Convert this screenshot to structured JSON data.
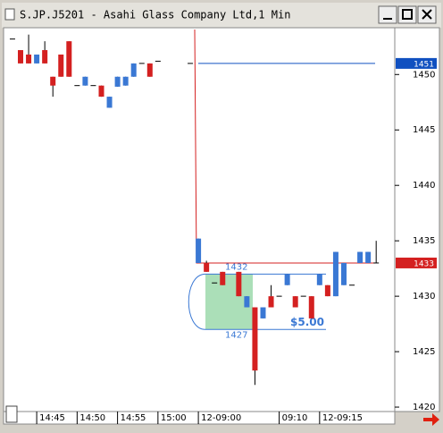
{
  "window_title": "S.JP.J5201 - Asahi Glass Company Ltd,1 Min",
  "chart_data": {
    "type": "candlestick",
    "open": [
      1453.2,
      1452.2,
      1451.8,
      1451,
      1452.2,
      1449.8,
      1451.8,
      1453,
      1449,
      1449,
      1449,
      1449,
      1447,
      1448.9,
      1449,
      1449.8,
      1451,
      1451,
      1451.2,
      null,
      null,
      null,
      1451,
      1433,
      1433,
      1431.2,
      1432.2,
      null,
      1432.2,
      1429,
      1429,
      1428,
      1430,
      1430,
      1431,
      1430,
      1430,
      1430,
      1431,
      1431,
      1430,
      1431,
      1431,
      1433,
      1433,
      1433
    ],
    "high": [
      1453.2,
      1452.2,
      1453.6,
      1451.8,
      1453,
      1449.8,
      1451.8,
      1453,
      1449,
      1449.8,
      1449,
      1449,
      1448,
      1449.8,
      1449.8,
      1451,
      1451,
      1451,
      1451.2,
      null,
      null,
      null,
      1451,
      1435.2,
      1433.2,
      1431.2,
      1432.2,
      null,
      1432.2,
      1430,
      1429,
      1429,
      1431,
      1430,
      1432,
      1430,
      1430,
      1430,
      1432,
      1431,
      1434,
      1433,
      1431,
      1434,
      1434,
      1435
    ],
    "low": [
      1453.2,
      1451,
      1451,
      1451,
      1451,
      1448,
      1449.8,
      1449.8,
      1449,
      1449,
      1449,
      1448,
      1447,
      1448.9,
      1449,
      1449.8,
      1451,
      1449.8,
      1451.2,
      null,
      null,
      null,
      1451,
      1433,
      1432.2,
      1431.2,
      1431,
      null,
      1430,
      1429,
      1422,
      1428,
      1429,
      1430,
      1431,
      1429,
      1430,
      1428,
      1431,
      1430,
      1430,
      1431,
      1431,
      1433,
      1433,
      1433
    ],
    "close": [
      1453.2,
      1451,
      1451,
      1451.8,
      1451,
      1449,
      1449.8,
      1449.8,
      1449,
      1449.8,
      1449,
      1448,
      1448,
      1449.8,
      1449.8,
      1451,
      1451,
      1449.8,
      1451.2,
      null,
      null,
      null,
      1451,
      1435.2,
      1432.2,
      1431.2,
      1431,
      null,
      1430,
      1430,
      1423.3,
      1429,
      1429,
      1430,
      1432,
      1429,
      1430,
      1428,
      1432,
      1430,
      1434,
      1433,
      1431,
      1434,
      1434,
      1433
    ],
    "up_color": "#3a78d4",
    "down_color": "#d42020",
    "ylim": [
      1419.6,
      1454.3
    ],
    "yticks": [
      1420,
      1425,
      1430,
      1435,
      1440,
      1445,
      1450
    ],
    "xlim": [
      -1.1,
      47.3
    ],
    "xticks": [
      {
        "value": 3,
        "label": "14:45"
      },
      {
        "value": 8,
        "label": "14:50"
      },
      {
        "value": 13,
        "label": "14:55"
      },
      {
        "value": 18,
        "label": "15:00"
      },
      {
        "value": 23,
        "label": "12-09:00"
      },
      {
        "value": 33,
        "label": "09:10"
      },
      {
        "value": 38,
        "label": "12-09:15"
      }
    ],
    "price_markers": [
      {
        "value": 1451,
        "color": "#1050c0"
      },
      {
        "value": 1433,
        "color": "#d42020"
      }
    ],
    "measurement": {
      "high": 1432,
      "low": 1427,
      "label": "$5.00"
    }
  }
}
